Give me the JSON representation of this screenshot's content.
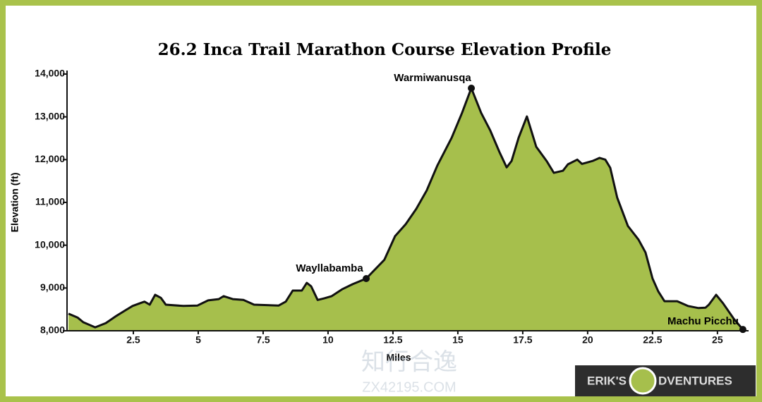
{
  "chart_data": {
    "type": "area",
    "title": "26.2 Inca Trail Marathon Course Elevation Profile",
    "x_label": "Miles",
    "y_label": "Elevation (ft)",
    "x": [
      0,
      0.35,
      0.57,
      0.76,
      1.03,
      1.44,
      1.85,
      2.2,
      2.47,
      2.74,
      2.93,
      3.13,
      3.34,
      3.56,
      3.75,
      4.43,
      4.97,
      5.38,
      5.79,
      5.98,
      6.33,
      6.74,
      7.15,
      8.1,
      8.37,
      8.64,
      8.99,
      9.18,
      9.35,
      9.6,
      9.86,
      10.14,
      10.54,
      10.95,
      11.47,
      12.17,
      12.58,
      12.99,
      13.4,
      13.8,
      14.21,
      14.76,
      15.16,
      15.52,
      15.9,
      16.25,
      16.6,
      16.88,
      17.07,
      17.34,
      17.66,
      18.02,
      18.42,
      18.7,
      19.05,
      19.24,
      19.6,
      19.78,
      20.19,
      20.46,
      20.68,
      20.87,
      21.14,
      21.55,
      21.96,
      22.23,
      22.5,
      22.72,
      22.96,
      23.45,
      23.86,
      24.27,
      24.54,
      24.67,
      24.95,
      25.22,
      25.63,
      25.98
    ],
    "series": [
      {
        "name": "Elevation",
        "color": "#a6bf4c",
        "values": [
          8400,
          8310,
          8200,
          8150,
          8080,
          8180,
          8350,
          8480,
          8580,
          8640,
          8680,
          8610,
          8840,
          8770,
          8610,
          8580,
          8590,
          8710,
          8740,
          8810,
          8740,
          8720,
          8610,
          8590,
          8680,
          8940,
          8940,
          9120,
          9040,
          8720,
          8760,
          8810,
          8970,
          9090,
          9220,
          9660,
          10210,
          10490,
          10850,
          11280,
          11860,
          12510,
          13090,
          13670,
          13090,
          12680,
          12180,
          11820,
          11970,
          12510,
          13010,
          12300,
          11970,
          11690,
          11740,
          11890,
          12000,
          11900,
          11970,
          12040,
          12000,
          11810,
          11110,
          10450,
          10130,
          9830,
          9220,
          8920,
          8690,
          8690,
          8580,
          8530,
          8540,
          8610,
          8840,
          8640,
          8280,
          8030
        ]
      }
    ],
    "annotations": [
      {
        "text": "Wayllabamba",
        "x": 11.47,
        "y": 9220
      },
      {
        "text": "Warmiwanusqa",
        "x": 15.52,
        "y": 13670
      },
      {
        "text": "Machu Picchu",
        "x": 25.98,
        "y": 8030
      }
    ],
    "xlim": [
      0,
      26.2
    ],
    "ylim": [
      8000,
      14000
    ],
    "xticks": [
      2.5,
      5,
      7.5,
      10,
      12.5,
      15,
      17.5,
      20,
      22.5,
      25
    ],
    "yticks": [
      {
        "value": 8000,
        "label": "8,000"
      },
      {
        "value": 9000,
        "label": "9,000"
      },
      {
        "value": 10000,
        "label": "10,000"
      },
      {
        "value": 11000,
        "label": "11,000"
      },
      {
        "value": 12000,
        "label": "12,000"
      },
      {
        "value": 13000,
        "label": "13,000"
      },
      {
        "value": 14000,
        "label": "14,000"
      }
    ],
    "grid": false
  },
  "logo": {
    "left": "ERIK'S",
    "right": "DVENTURES"
  },
  "watermark": {
    "name": "知行合逸",
    "url": "ZX42195.COM"
  }
}
